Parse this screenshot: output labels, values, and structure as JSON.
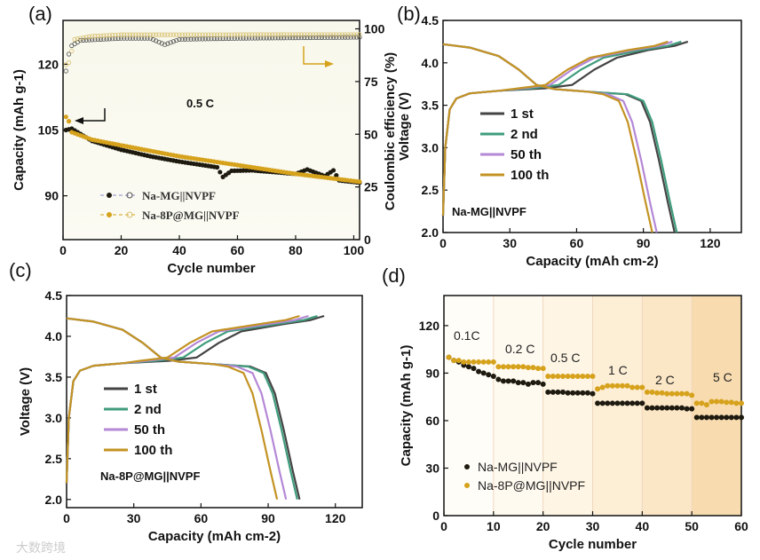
{
  "watermark": "大数跨境",
  "colors": {
    "mg": "#1e1a10",
    "p8": "#d6a21c",
    "p8_open": "#d8c070",
    "mg_open": "#555",
    "c1": "#444444",
    "c2": "#3f9c7c",
    "c50": "#b488d6",
    "c100": "#c39323"
  },
  "chart_data": [
    {
      "panel": "(a)",
      "type": "scatter",
      "xlabel": "Cycle number",
      "ylabel": "Capacity (mAh g-1)",
      "ylabel_right": "Coulombic efficiency (%)",
      "xlim": [
        0,
        102
      ],
      "ylim": [
        80,
        130
      ],
      "ylim_right": [
        0,
        104
      ],
      "xticks": [
        "0",
        "20",
        "40",
        "60",
        "80",
        "100"
      ],
      "yticks": [
        "90",
        "105",
        "120"
      ],
      "yticks_right": [
        "0",
        "25",
        "50",
        "75",
        "100"
      ],
      "annotation": "0.5 C",
      "legend": [
        "Na-MG||NVPF",
        "Na-8P@MG||NVPF"
      ],
      "series": [
        {
          "name": "Na-MG||NVPF capacity",
          "keypoints": [
            [
              1,
              105
            ],
            [
              3,
              105.3
            ],
            [
              10,
              102.5
            ],
            [
              20,
              100.5
            ],
            [
              30,
              99
            ],
            [
              40,
              97.8
            ],
            [
              50,
              96.8
            ],
            [
              53,
              96.5
            ],
            [
              55,
              94.3
            ],
            [
              58,
              95.7
            ],
            [
              65,
              95.8
            ],
            [
              80,
              95
            ],
            [
              84,
              96
            ],
            [
              90,
              94.5
            ],
            [
              93,
              95.8
            ],
            [
              95,
              93.5
            ],
            [
              102,
              93
            ]
          ]
        },
        {
          "name": "Na-8P@MG||NVPF capacity",
          "keypoints": [
            [
              1,
              108
            ],
            [
              2,
              107
            ],
            [
              3,
              104.5
            ],
            [
              10,
              102.8
            ],
            [
              20,
              101.5
            ],
            [
              40,
              99
            ],
            [
              60,
              97
            ],
            [
              80,
              95
            ],
            [
              102,
              93.2
            ]
          ]
        },
        {
          "name": "Na-MG||NVPF CE",
          "keypoints": [
            [
              1,
              80
            ],
            [
              2,
              88
            ],
            [
              3,
              92
            ],
            [
              6,
              94.5
            ],
            [
              20,
              95.5
            ],
            [
              30,
              95.5
            ],
            [
              35,
              92.5
            ],
            [
              40,
              95
            ],
            [
              60,
              95.5
            ],
            [
              102,
              96
            ]
          ]
        },
        {
          "name": "Na-8P@MG||NVPF CE",
          "keypoints": [
            [
              1,
              83
            ],
            [
              2,
              84
            ],
            [
              4,
              95
            ],
            [
              10,
              96.5
            ],
            [
              20,
              97.2
            ],
            [
              102,
              97.3
            ]
          ]
        }
      ]
    },
    {
      "panel": "(b)",
      "type": "line",
      "xlabel": "Capacity (mAh cm-2)",
      "ylabel": "Voltage (V)",
      "xlim": [
        0,
        134
      ],
      "ylim": [
        2.0,
        4.5
      ],
      "xticks": [
        "0",
        "30",
        "60",
        "90",
        "120"
      ],
      "yticks": [
        "2.0",
        "2.5",
        "3.0",
        "3.5",
        "4.0",
        "4.5"
      ],
      "annotation": "Na-MG||NVPF",
      "series": [
        {
          "name": "1 st",
          "charge_end": 110,
          "discharge_end": 104,
          "knee": 58
        },
        {
          "name": "2 nd",
          "charge_end": 107,
          "discharge_end": 105,
          "knee": 52
        },
        {
          "name": "50 th",
          "charge_end": 103,
          "discharge_end": 96,
          "knee": 48
        },
        {
          "name": "100 th",
          "charge_end": 101,
          "discharge_end": 94,
          "knee": 46
        }
      ]
    },
    {
      "panel": "(c)",
      "type": "line",
      "xlabel": "Capacity (mAh cm-2)",
      "ylabel": "Voltage (V)",
      "xlim": [
        0,
        132
      ],
      "ylim": [
        1.9,
        4.5
      ],
      "xticks": [
        "0",
        "30",
        "60",
        "90",
        "120"
      ],
      "yticks": [
        "2.0",
        "2.5",
        "3.0",
        "3.5",
        "4.0",
        "4.5"
      ],
      "annotation": "Na-8P@MG||NVPF",
      "series": [
        {
          "name": "1 st",
          "charge_end": 115,
          "discharge_end": 104,
          "knee": 58
        },
        {
          "name": "2 nd",
          "charge_end": 112,
          "discharge_end": 103,
          "knee": 52
        },
        {
          "name": "50 th",
          "charge_end": 108,
          "discharge_end": 98,
          "knee": 48
        },
        {
          "name": "100 th",
          "charge_end": 104,
          "discharge_end": 94,
          "knee": 45
        }
      ]
    },
    {
      "panel": "(d)",
      "type": "scatter",
      "xlabel": "Cycle number",
      "ylabel": "Capacity (mAh g-1)",
      "xlim": [
        0,
        60
      ],
      "ylim": [
        0,
        139
      ],
      "xticks": [
        "0",
        "10",
        "20",
        "30",
        "40",
        "50",
        "60"
      ],
      "yticks": [
        "0",
        "30",
        "60",
        "90",
        "120"
      ],
      "rates": [
        "0.1C",
        "0.2 C",
        "0.5 C",
        "1 C",
        "2 C",
        "5 C"
      ],
      "legend": [
        "Na-MG||NVPF",
        "Na-8P@MG||NVPF"
      ],
      "series": [
        {
          "name": "Na-MG||NVPF",
          "values": [
            100,
            98,
            97,
            95,
            94,
            93,
            91,
            90,
            89,
            88,
            86,
            85,
            85,
            85,
            84,
            84,
            83,
            84,
            84,
            83,
            78,
            78,
            78,
            78,
            77.5,
            77.5,
            77.5,
            77.5,
            77.5,
            77,
            71,
            71,
            71,
            71,
            71,
            71,
            71,
            71,
            71,
            71,
            68,
            68,
            68,
            68,
            68,
            68,
            68,
            68,
            67.5,
            67.5,
            62,
            62,
            62,
            62,
            62,
            62,
            62,
            62,
            62,
            62
          ]
        },
        {
          "name": "Na-8P@MG||NVPF",
          "values": [
            100,
            98,
            98,
            97,
            97,
            97,
            97,
            97,
            97,
            97,
            94,
            94,
            94,
            94,
            94,
            94,
            93.5,
            93.5,
            93,
            93,
            88,
            88,
            88,
            88,
            88,
            88,
            88,
            88,
            88,
            88,
            80,
            81,
            82,
            82,
            82,
            82,
            82,
            81,
            81,
            81,
            78,
            78,
            77.5,
            77.5,
            77,
            77,
            77,
            77,
            77,
            76,
            71,
            71,
            70,
            72,
            72,
            72,
            71.5,
            71.5,
            71,
            71
          ]
        }
      ]
    }
  ]
}
